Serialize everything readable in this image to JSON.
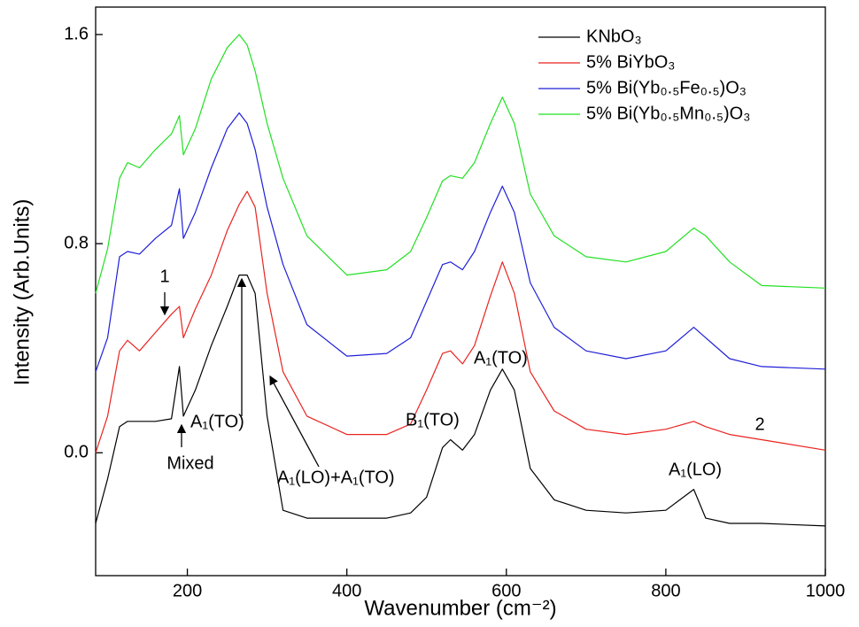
{
  "chart_data": {
    "type": "line",
    "x_label": "Wavenumber (cm⁻²)",
    "y_label": "Intensity (Arb.Units)",
    "x": [
      85,
      100,
      115,
      125,
      140,
      160,
      180,
      190,
      195,
      210,
      230,
      250,
      265,
      275,
      285,
      300,
      320,
      350,
      400,
      450,
      480,
      500,
      520,
      530,
      545,
      560,
      580,
      595,
      610,
      630,
      660,
      700,
      750,
      800,
      835,
      850,
      880,
      920,
      1000
    ],
    "series": [
      {
        "name": "KNbO₃",
        "color": "#000000",
        "values": [
          -0.27,
          -0.1,
          0.1,
          0.12,
          0.12,
          0.12,
          0.13,
          0.33,
          0.14,
          0.24,
          0.41,
          0.56,
          0.68,
          0.68,
          0.61,
          0.14,
          -0.22,
          -0.25,
          -0.25,
          -0.25,
          -0.23,
          -0.17,
          0.02,
          0.05,
          0.01,
          0.07,
          0.24,
          0.32,
          0.24,
          -0.06,
          -0.18,
          -0.22,
          -0.23,
          -0.22,
          -0.14,
          -0.25,
          -0.27,
          -0.27,
          -0.28
        ]
      },
      {
        "name": "5% BiYbO₃",
        "color": "#e8231f",
        "values": [
          0,
          0.14,
          0.39,
          0.43,
          0.39,
          0.46,
          0.53,
          0.56,
          0.44,
          0.55,
          0.68,
          0.85,
          0.95,
          1.0,
          0.94,
          0.61,
          0.31,
          0.14,
          0.07,
          0.07,
          0.11,
          0.24,
          0.38,
          0.39,
          0.34,
          0.41,
          0.6,
          0.73,
          0.61,
          0.31,
          0.16,
          0.09,
          0.07,
          0.09,
          0.12,
          0.1,
          0.07,
          0.05,
          0.01
        ]
      },
      {
        "name": "5% Bi(Yb₀.₅Fe₀.₅)O₃",
        "color": "#1f1fd8",
        "values": [
          0.31,
          0.44,
          0.75,
          0.77,
          0.76,
          0.82,
          0.87,
          1.01,
          0.82,
          0.92,
          1.09,
          1.24,
          1.3,
          1.26,
          1.16,
          0.94,
          0.72,
          0.49,
          0.37,
          0.38,
          0.44,
          0.58,
          0.72,
          0.73,
          0.7,
          0.77,
          0.92,
          1.02,
          0.92,
          0.65,
          0.48,
          0.39,
          0.36,
          0.39,
          0.48,
          0.44,
          0.36,
          0.33,
          0.32
        ]
      },
      {
        "name": "5% Bi(Yb₀.₅Mn₀.₅)O₃",
        "color": "#22e022",
        "values": [
          0.61,
          0.78,
          1.05,
          1.11,
          1.09,
          1.16,
          1.22,
          1.29,
          1.14,
          1.24,
          1.43,
          1.55,
          1.6,
          1.56,
          1.46,
          1.26,
          1.05,
          0.83,
          0.68,
          0.7,
          0.77,
          0.9,
          1.04,
          1.06,
          1.05,
          1.11,
          1.26,
          1.36,
          1.26,
          0.99,
          0.83,
          0.75,
          0.73,
          0.77,
          0.86,
          0.83,
          0.73,
          0.64,
          0.63
        ]
      }
    ],
    "xlim": [
      85,
      1000
    ],
    "ylim": [
      -0.47,
      1.705
    ],
    "xticks": [
      200,
      400,
      600,
      800,
      1000
    ],
    "yticks": [
      {
        "value": 0,
        "label": "0.0"
      },
      0.8,
      1.6
    ],
    "legend": "upper right",
    "annotations": [
      "1",
      "A₁(TO)",
      "Mixed",
      "A₁(LO)+A₁(TO)",
      "B₁(TO)",
      "A₁(TO)",
      "A₁(LO)",
      "2"
    ]
  }
}
